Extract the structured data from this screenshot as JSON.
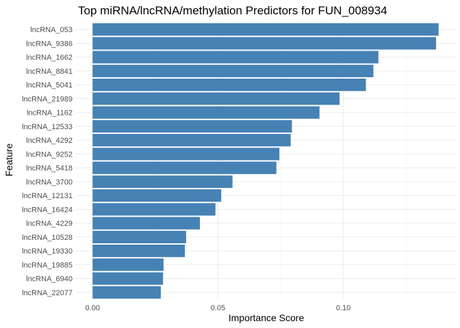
{
  "chart_data": {
    "type": "bar",
    "orientation": "horizontal",
    "title": "Top miRNA/lncRNA/methylation Predictors for FUN_008934",
    "xlabel": "Importance Score",
    "ylabel": "Feature",
    "categories": [
      "lncRNA_053",
      "lncRNA_9386",
      "lncRNA_1662",
      "lncRNA_8841",
      "lncRNA_5041",
      "lncRNA_21989",
      "lncRNA_1162",
      "lncRNA_12533",
      "lncRNA_4292",
      "lncRNA_9252",
      "lncRNA_5418",
      "lncRNA_3700",
      "lncRNA_12131",
      "lncRNA_16424",
      "lncRNA_4229",
      "lncRNA_10528",
      "lncRNA_19330",
      "lncRNA_19885",
      "lncRNA_6940",
      "lncRNA_22077"
    ],
    "values": [
      0.138,
      0.137,
      0.114,
      0.112,
      0.109,
      0.0985,
      0.0905,
      0.0795,
      0.079,
      0.0745,
      0.0733,
      0.0558,
      0.0513,
      0.049,
      0.0428,
      0.0373,
      0.0368,
      0.0283,
      0.0281,
      0.0272
    ],
    "xlim": [
      -0.0069,
      0.1449
    ],
    "xticks": [
      0.0,
      0.05,
      0.1
    ],
    "xtick_labels": [
      "0.00",
      "0.05",
      "0.10"
    ],
    "grid": true,
    "legend": "none",
    "bar_color": "#4682B4"
  }
}
